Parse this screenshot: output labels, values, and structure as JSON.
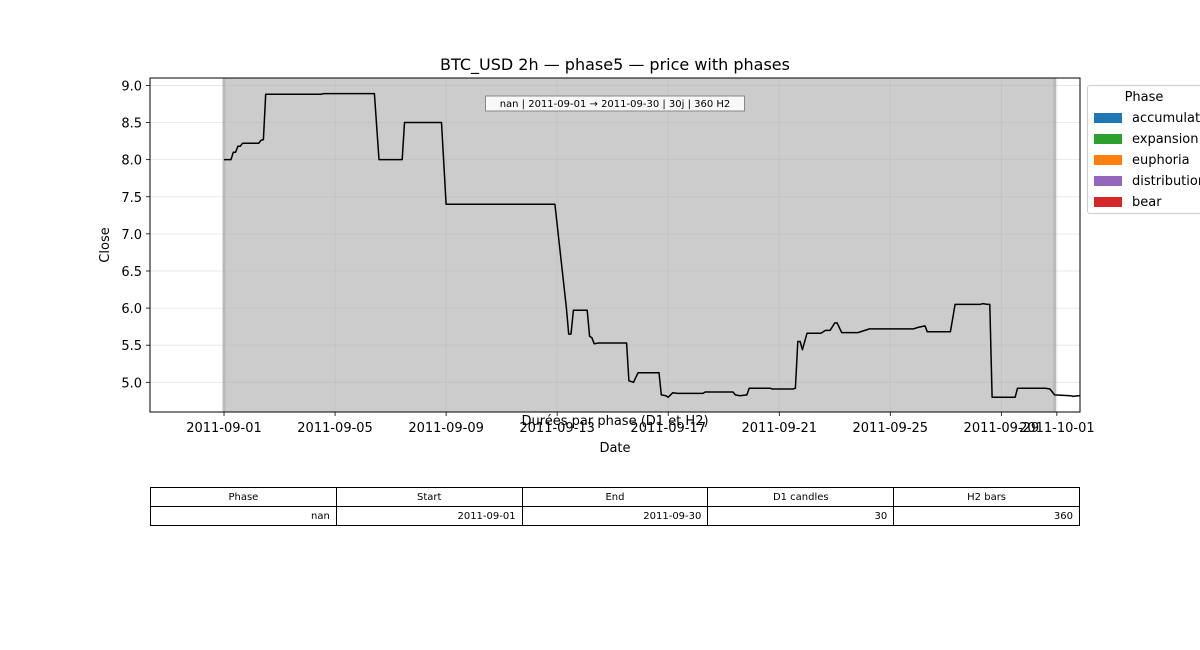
{
  "chart_data": {
    "type": "line",
    "title": "BTC_USD 2h — phase5 — price with phases",
    "xlabel": "Date",
    "ylabel": "Close",
    "x_range": [
      "2011-08-29T08:00",
      "2011-10-01T20:00"
    ],
    "data_range": [
      "2011-09-01T00:00",
      "2011-09-30T22:00"
    ],
    "ylim": [
      4.6,
      9.1
    ],
    "xticks": [
      "2011-09-01",
      "2011-09-05",
      "2011-09-09",
      "2011-09-13",
      "2011-09-17",
      "2011-09-21",
      "2011-09-25",
      "2011-09-29",
      "2011-10-01"
    ],
    "yticks": [
      5.0,
      5.5,
      6.0,
      6.5,
      7.0,
      7.5,
      8.0,
      8.5,
      9.0
    ],
    "grid": true,
    "annotation": "nan | 2011-09-01 → 2011-09-30 | 30j | 360 H2",
    "phase_span": {
      "label": "nan",
      "start": "2011-09-01T00:00",
      "end": "2011-09-30T22:00",
      "color": "#cccccc"
    },
    "line_color": "#000000",
    "series": [
      {
        "points": [
          [
            "2011-09-01T00:00",
            8.0
          ],
          [
            "2011-09-01T06:00",
            8.0
          ],
          [
            "2011-09-01T08:00",
            8.1
          ],
          [
            "2011-09-01T10:00",
            8.1
          ],
          [
            "2011-09-01T12:00",
            8.18
          ],
          [
            "2011-09-01T14:00",
            8.18
          ],
          [
            "2011-09-01T16:00",
            8.22
          ],
          [
            "2011-09-02T06:00",
            8.22
          ],
          [
            "2011-09-02T08:00",
            8.26
          ],
          [
            "2011-09-02T10:00",
            8.27
          ],
          [
            "2011-09-02T12:00",
            8.88
          ],
          [
            "2011-09-04T12:00",
            8.88
          ],
          [
            "2011-09-04T14:00",
            8.89
          ],
          [
            "2011-09-06T10:00",
            8.89
          ],
          [
            "2011-09-06T14:00",
            8.0
          ],
          [
            "2011-09-07T10:00",
            8.0
          ],
          [
            "2011-09-07T12:00",
            8.5
          ],
          [
            "2011-09-08T20:00",
            8.5
          ],
          [
            "2011-09-09T00:00",
            7.4
          ],
          [
            "2011-09-12T22:00",
            7.4
          ],
          [
            "2011-09-13T08:00",
            6.0
          ],
          [
            "2011-09-13T10:00",
            5.65
          ],
          [
            "2011-09-13T12:00",
            5.65
          ],
          [
            "2011-09-13T14:00",
            5.97
          ],
          [
            "2011-09-14T02:00",
            5.97
          ],
          [
            "2011-09-14T04:00",
            5.62
          ],
          [
            "2011-09-14T06:00",
            5.6
          ],
          [
            "2011-09-14T08:00",
            5.52
          ],
          [
            "2011-09-14T12:00",
            5.53
          ],
          [
            "2011-09-15T12:00",
            5.53
          ],
          [
            "2011-09-15T14:00",
            5.02
          ],
          [
            "2011-09-15T18:00",
            5.0
          ],
          [
            "2011-09-15T22:00",
            5.13
          ],
          [
            "2011-09-16T16:00",
            5.13
          ],
          [
            "2011-09-16T18:00",
            4.83
          ],
          [
            "2011-09-16T22:00",
            4.82
          ],
          [
            "2011-09-17T00:00",
            4.8
          ],
          [
            "2011-09-17T04:00",
            4.86
          ],
          [
            "2011-09-17T08:00",
            4.85
          ],
          [
            "2011-09-18T06:00",
            4.85
          ],
          [
            "2011-09-18T08:00",
            4.87
          ],
          [
            "2011-09-19T08:00",
            4.87
          ],
          [
            "2011-09-19T10:00",
            4.83
          ],
          [
            "2011-09-19T14:00",
            4.82
          ],
          [
            "2011-09-19T20:00",
            4.83
          ],
          [
            "2011-09-19T22:00",
            4.92
          ],
          [
            "2011-09-20T16:00",
            4.92
          ],
          [
            "2011-09-20T18:00",
            4.91
          ],
          [
            "2011-09-21T12:00",
            4.91
          ],
          [
            "2011-09-21T14:00",
            4.92
          ],
          [
            "2011-09-21T16:00",
            5.55
          ],
          [
            "2011-09-21T18:00",
            5.55
          ],
          [
            "2011-09-21T20:00",
            5.44
          ],
          [
            "2011-09-22T00:00",
            5.66
          ],
          [
            "2011-09-22T12:00",
            5.66
          ],
          [
            "2011-09-22T16:00",
            5.7
          ],
          [
            "2011-09-22T20:00",
            5.7
          ],
          [
            "2011-09-23T00:00",
            5.8
          ],
          [
            "2011-09-23T02:00",
            5.8
          ],
          [
            "2011-09-23T06:00",
            5.67
          ],
          [
            "2011-09-23T20:00",
            5.67
          ],
          [
            "2011-09-24T00:00",
            5.69
          ],
          [
            "2011-09-24T06:00",
            5.72
          ],
          [
            "2011-09-25T20:00",
            5.72
          ],
          [
            "2011-09-26T00:00",
            5.74
          ],
          [
            "2011-09-26T06:00",
            5.76
          ],
          [
            "2011-09-26T08:00",
            5.68
          ],
          [
            "2011-09-27T04:00",
            5.68
          ],
          [
            "2011-09-27T08:00",
            6.05
          ],
          [
            "2011-09-28T06:00",
            6.05
          ],
          [
            "2011-09-28T08:00",
            6.06
          ],
          [
            "2011-09-28T12:00",
            6.05
          ],
          [
            "2011-09-28T14:00",
            6.05
          ],
          [
            "2011-09-28T16:00",
            4.8
          ],
          [
            "2011-09-29T12:00",
            4.8
          ],
          [
            "2011-09-29T14:00",
            4.92
          ],
          [
            "2011-09-30T14:00",
            4.92
          ],
          [
            "2011-09-30T18:00",
            4.91
          ],
          [
            "2011-09-30T22:00",
            4.83
          ],
          [
            "2011-10-01T12:00",
            4.82
          ],
          [
            "2011-10-01T14:00",
            4.81
          ],
          [
            "2011-10-01T18:00",
            4.82
          ],
          [
            "2011-10-01T20:00",
            4.82
          ]
        ]
      }
    ]
  },
  "legend": {
    "title": "Phase",
    "items": [
      {
        "label": "accumulation",
        "color": "#1f77b4"
      },
      {
        "label": "expansion",
        "color": "#2ca02c"
      },
      {
        "label": "euphoria",
        "color": "#ff7f0e"
      },
      {
        "label": "distribution",
        "color": "#9467bd"
      },
      {
        "label": "bear",
        "color": "#d62728"
      }
    ]
  },
  "table": {
    "title": "Durées par phase (D1 et H2)",
    "headers": [
      "Phase",
      "Start",
      "End",
      "D1 candles",
      "H2 bars"
    ],
    "rows": [
      [
        "nan",
        "2011-09-01",
        "2011-09-30",
        "30",
        "360"
      ]
    ]
  }
}
